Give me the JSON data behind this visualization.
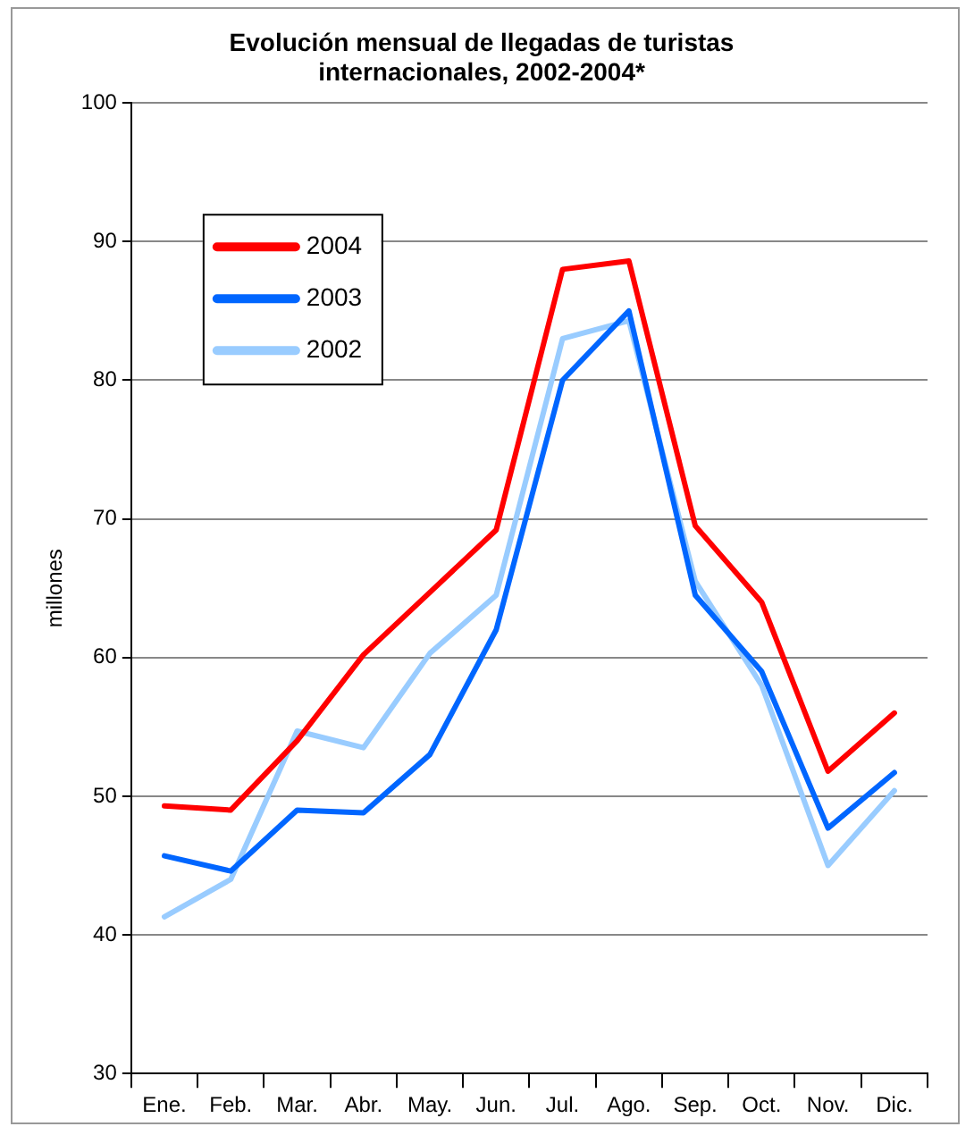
{
  "chart_data": {
    "type": "line",
    "title": "Evolución mensual de llegadas de turistas internacionales, 2002-2004*",
    "ylabel": "millones",
    "categories": [
      "Ene.",
      "Feb.",
      "Mar.",
      "Abr.",
      "May.",
      "Jun.",
      "Jul.",
      "Ago.",
      "Sep.",
      "Oct.",
      "Nov.",
      "Dic."
    ],
    "series": [
      {
        "name": "2004",
        "color": "#ff0000",
        "values": [
          49.3,
          49,
          54,
          60.2,
          64.7,
          69.2,
          88,
          88.6,
          69.5,
          64,
          51.8,
          56
        ]
      },
      {
        "name": "2003",
        "color": "#0066ff",
        "values": [
          45.7,
          44.6,
          49,
          48.8,
          53,
          62,
          80,
          85,
          64.5,
          59,
          47.7,
          51.7
        ]
      },
      {
        "name": "2002",
        "color": "#99ccff",
        "values": [
          41.3,
          44,
          54.7,
          53.5,
          60.3,
          64.5,
          83,
          84.3,
          65.5,
          58,
          45,
          50.4
        ]
      }
    ],
    "ylim": [
      30,
      100
    ],
    "yticks": [
      30,
      40,
      50,
      60,
      70,
      80,
      90,
      100
    ],
    "grid": "y",
    "legend": "top left",
    "marker": "none",
    "line_style": "solid"
  }
}
